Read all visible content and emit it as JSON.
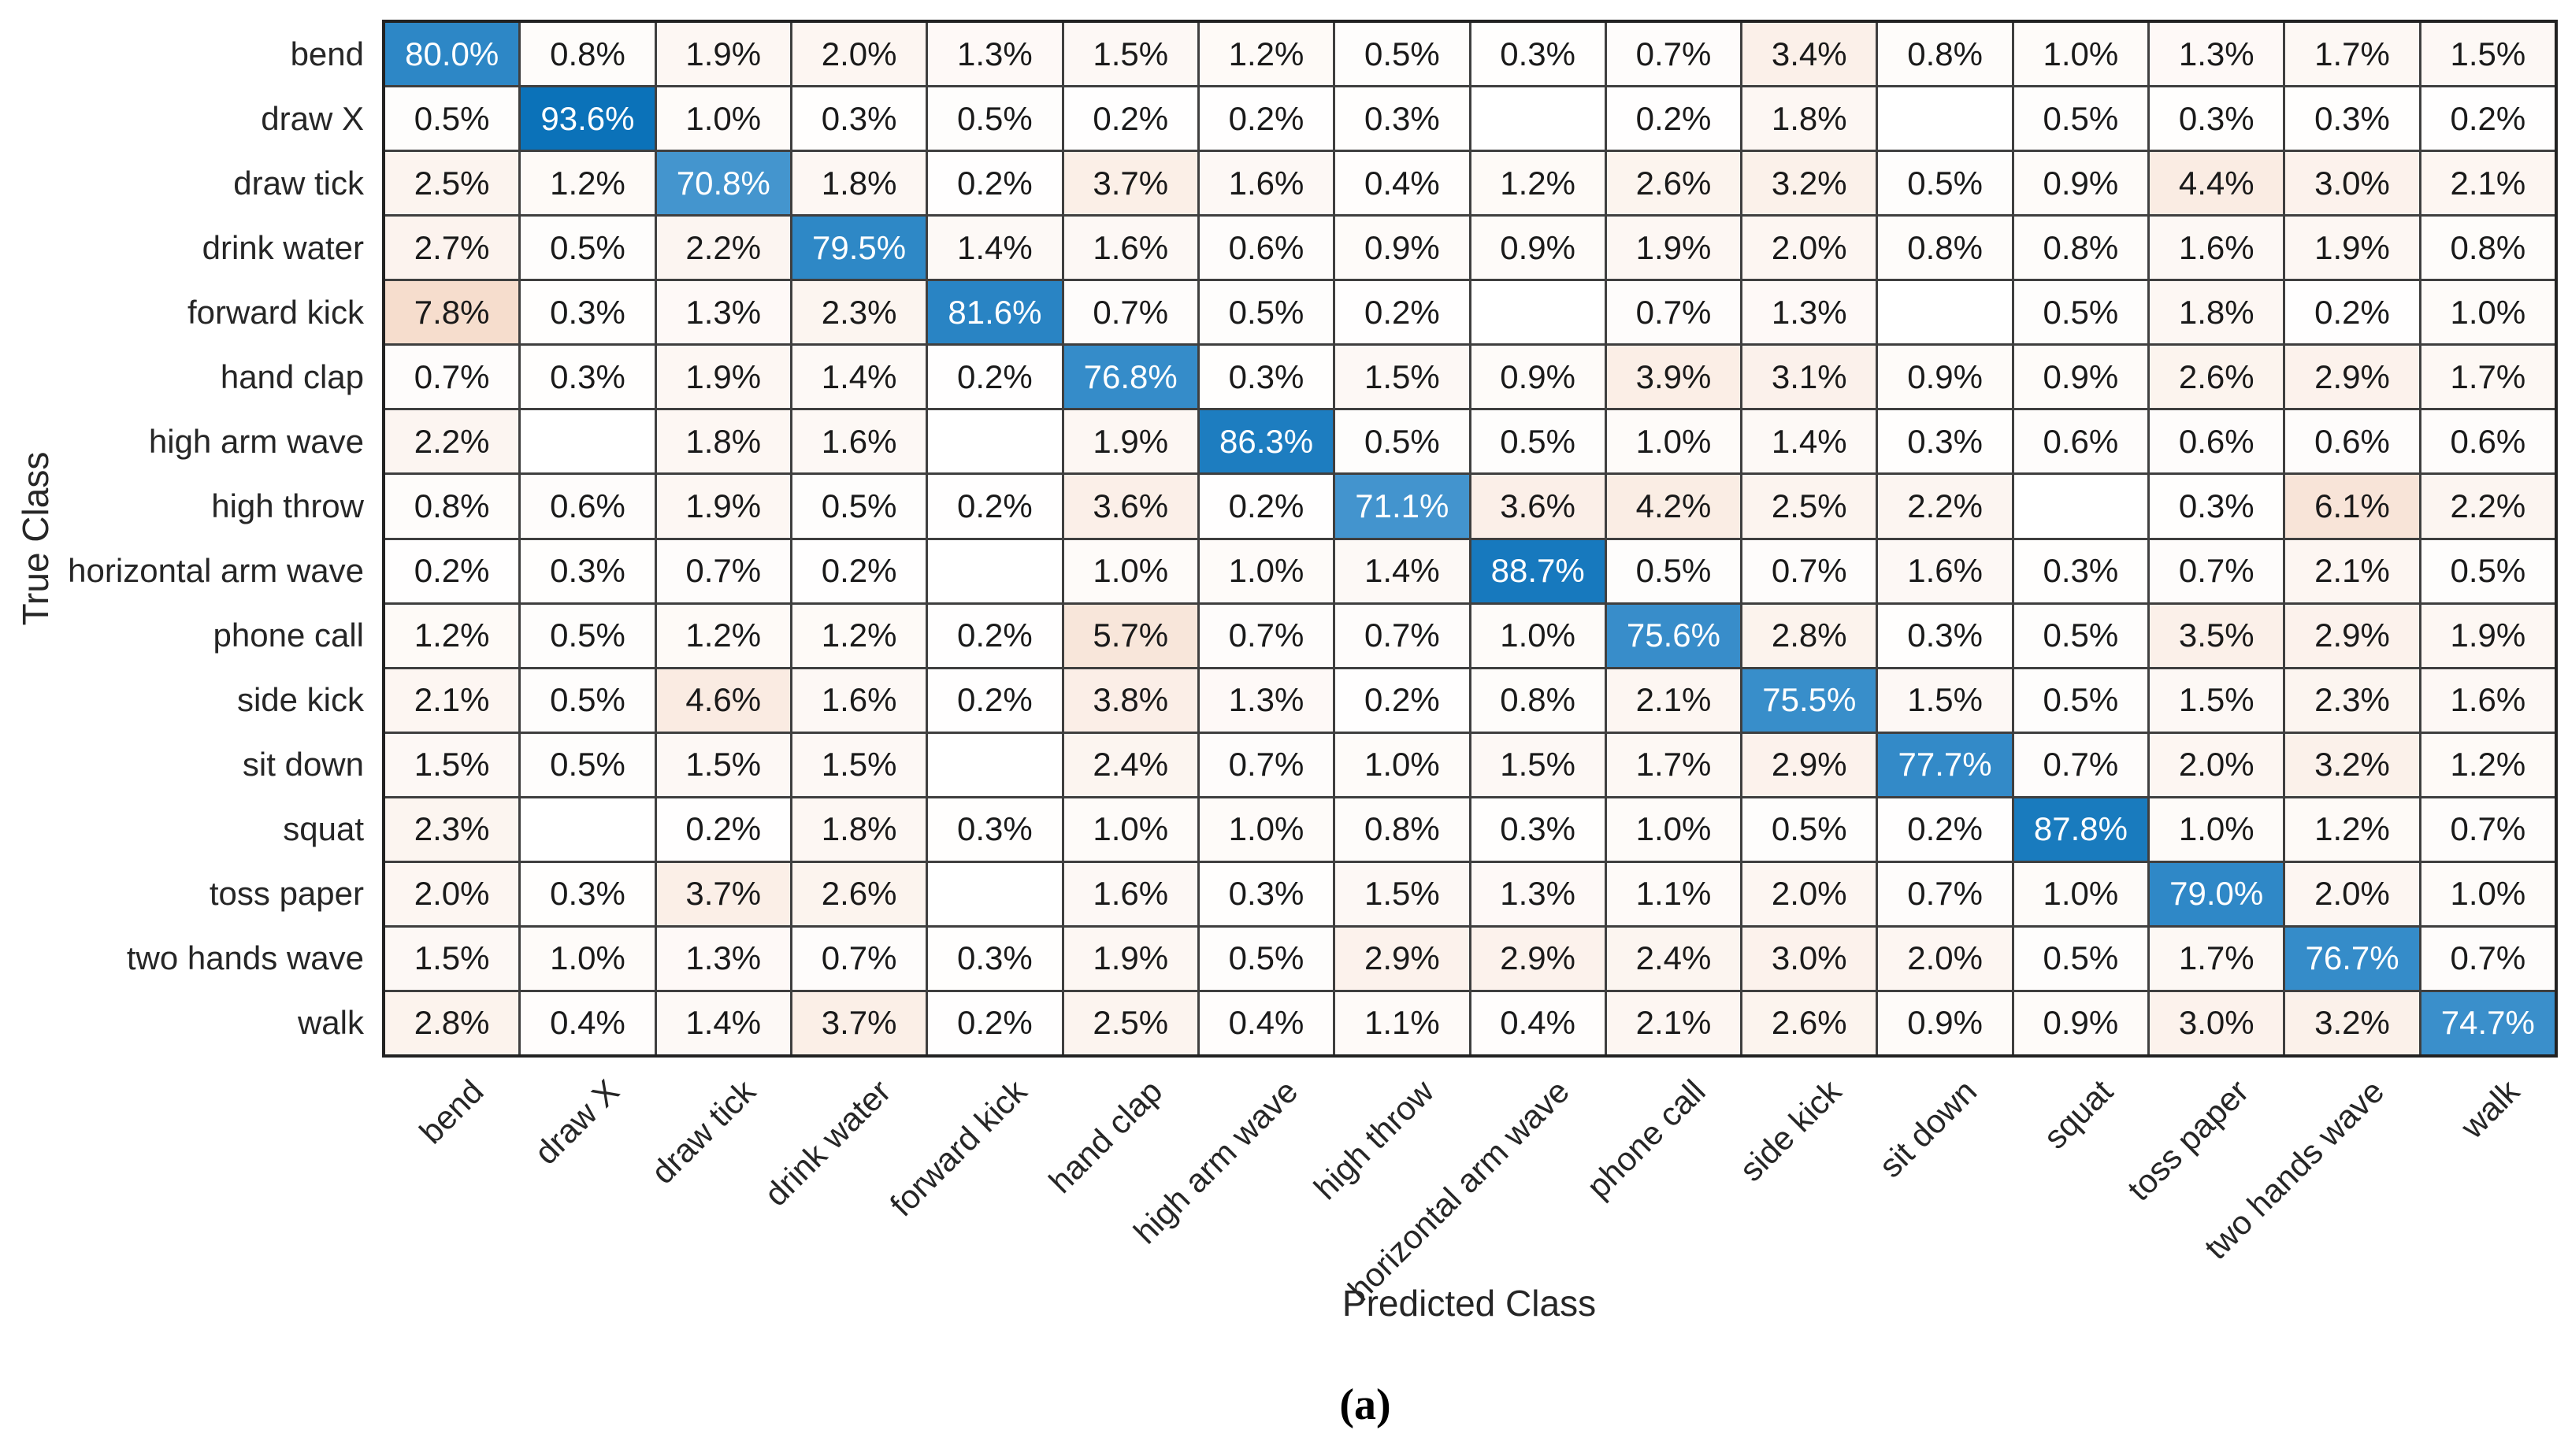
{
  "figure": {
    "ylabel": "True Class",
    "xlabel": "Predicted Class",
    "caption": "(a)"
  },
  "chart_data": {
    "type": "heatmap",
    "title": "",
    "xlabel": "Predicted Class",
    "ylabel": "True Class",
    "unit": "%",
    "classes": [
      "bend",
      "draw X",
      "draw tick",
      "drink water",
      "forward kick",
      "hand clap",
      "high arm wave",
      "high throw",
      "horizontal arm wave",
      "phone call",
      "side kick",
      "sit down",
      "squat",
      "toss paper",
      "two hands wave",
      "walk"
    ],
    "matrix": [
      [
        80.0,
        0.8,
        1.9,
        2.0,
        1.3,
        1.5,
        1.2,
        0.5,
        0.3,
        0.7,
        3.4,
        0.8,
        1.0,
        1.3,
        1.7,
        1.5
      ],
      [
        0.5,
        93.6,
        1.0,
        0.3,
        0.5,
        0.2,
        0.2,
        0.3,
        null,
        0.2,
        1.8,
        null,
        0.5,
        0.3,
        0.3,
        0.2
      ],
      [
        2.5,
        1.2,
        70.8,
        1.8,
        0.2,
        3.7,
        1.6,
        0.4,
        1.2,
        2.6,
        3.2,
        0.5,
        0.9,
        4.4,
        3.0,
        2.1
      ],
      [
        2.7,
        0.5,
        2.2,
        79.5,
        1.4,
        1.6,
        0.6,
        0.9,
        0.9,
        1.9,
        2.0,
        0.8,
        0.8,
        1.6,
        1.9,
        0.8
      ],
      [
        7.8,
        0.3,
        1.3,
        2.3,
        81.6,
        0.7,
        0.5,
        0.2,
        null,
        0.7,
        1.3,
        null,
        0.5,
        1.8,
        0.2,
        1.0
      ],
      [
        0.7,
        0.3,
        1.9,
        1.4,
        0.2,
        76.8,
        0.3,
        1.5,
        0.9,
        3.9,
        3.1,
        0.9,
        0.9,
        2.6,
        2.9,
        1.7
      ],
      [
        2.2,
        null,
        1.8,
        1.6,
        null,
        1.9,
        86.3,
        0.5,
        0.5,
        1.0,
        1.4,
        0.3,
        0.6,
        0.6,
        0.6,
        0.6
      ],
      [
        0.8,
        0.6,
        1.9,
        0.5,
        0.2,
        3.6,
        0.2,
        71.1,
        3.6,
        4.2,
        2.5,
        2.2,
        null,
        0.3,
        6.1,
        2.2
      ],
      [
        0.2,
        0.3,
        0.7,
        0.2,
        null,
        1.0,
        1.0,
        1.4,
        88.7,
        0.5,
        0.7,
        1.6,
        0.3,
        0.7,
        2.1,
        0.5
      ],
      [
        1.2,
        0.5,
        1.2,
        1.2,
        0.2,
        5.7,
        0.7,
        0.7,
        1.0,
        75.6,
        2.8,
        0.3,
        0.5,
        3.5,
        2.9,
        1.9
      ],
      [
        2.1,
        0.5,
        4.6,
        1.6,
        0.2,
        3.8,
        1.3,
        0.2,
        0.8,
        2.1,
        75.5,
        1.5,
        0.5,
        1.5,
        2.3,
        1.6
      ],
      [
        1.5,
        0.5,
        1.5,
        1.5,
        null,
        2.4,
        0.7,
        1.0,
        1.5,
        1.7,
        2.9,
        77.7,
        0.7,
        2.0,
        3.2,
        1.2
      ],
      [
        2.3,
        null,
        0.2,
        1.8,
        0.3,
        1.0,
        1.0,
        0.8,
        0.3,
        1.0,
        0.5,
        0.2,
        87.8,
        1.0,
        1.2,
        0.7
      ],
      [
        2.0,
        0.3,
        3.7,
        2.6,
        null,
        1.6,
        0.3,
        1.5,
        1.3,
        1.1,
        2.0,
        0.7,
        1.0,
        79.0,
        2.0,
        1.0
      ],
      [
        1.5,
        1.0,
        1.3,
        0.7,
        0.3,
        1.9,
        0.5,
        2.9,
        2.9,
        2.4,
        3.0,
        2.0,
        0.5,
        1.7,
        76.7,
        0.7
      ],
      [
        2.8,
        0.4,
        1.4,
        3.7,
        0.2,
        2.5,
        0.4,
        1.1,
        0.4,
        2.1,
        2.6,
        0.9,
        0.9,
        3.0,
        3.2,
        74.7
      ]
    ],
    "colors": {
      "diagonal_low": "#4696CF",
      "diagonal_high": "#0B72B9",
      "diagonal_scale": [
        70.0,
        93.6
      ],
      "offdiag_low": "#FFFFFF",
      "offdiag_high": "#F6DDCD",
      "offdiag_max": 7.8,
      "grid_line": "#3f3f3f",
      "outer_border": "#222222",
      "cell_text": "#1a1a1a",
      "diagonal_text": "#ffffff"
    },
    "layout": {
      "x_tick_rotation_deg": 45,
      "grid": true,
      "legend": false
    }
  }
}
